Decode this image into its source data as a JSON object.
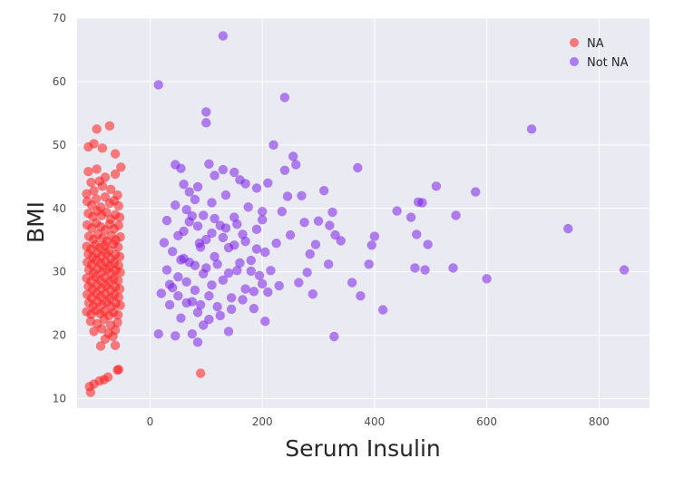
{
  "chart_data": {
    "type": "scatter",
    "xlabel": "Serum Insulin",
    "ylabel": "BMI",
    "xlim": [
      -130,
      890
    ],
    "ylim": [
      8.5,
      70
    ],
    "xticks": [
      0,
      200,
      400,
      600,
      800
    ],
    "yticks": [
      10,
      20,
      30,
      40,
      50,
      60,
      70
    ],
    "grid": true,
    "legend_placement": "top-right",
    "series": [
      {
        "name": "NA",
        "color": "#ff1a1a",
        "values": [
          [
            -110,
            49.7
          ],
          [
            -100,
            50.2
          ],
          [
            -95,
            52.5
          ],
          [
            -85,
            49.5
          ],
          [
            -72,
            53.0
          ],
          [
            -62,
            48.6
          ],
          [
            -110,
            45.8
          ],
          [
            -95,
            46.2
          ],
          [
            -80,
            44.9
          ],
          [
            -62,
            45.4
          ],
          [
            -52,
            46.5
          ],
          [
            -105,
            44.1
          ],
          [
            -113,
            42.3
          ],
          [
            -100,
            42.8
          ],
          [
            -85,
            43.5
          ],
          [
            -70,
            43.0
          ],
          [
            -58,
            42.1
          ],
          [
            -90,
            44.3
          ],
          [
            -112,
            41.1
          ],
          [
            -104,
            40.5
          ],
          [
            -96,
            41.5
          ],
          [
            -88,
            40.2
          ],
          [
            -80,
            41.8
          ],
          [
            -72,
            40.8
          ],
          [
            -64,
            41.2
          ],
          [
            -56,
            40.4
          ],
          [
            -110,
            39.2
          ],
          [
            -102,
            38.7
          ],
          [
            -94,
            39.6
          ],
          [
            -86,
            38.9
          ],
          [
            -78,
            39.4
          ],
          [
            -70,
            38.3
          ],
          [
            -62,
            39.0
          ],
          [
            -54,
            38.6
          ],
          [
            -112,
            37.4
          ],
          [
            -104,
            36.9
          ],
          [
            -96,
            37.7
          ],
          [
            -88,
            37.1
          ],
          [
            -80,
            36.6
          ],
          [
            -72,
            37.5
          ],
          [
            -64,
            36.8
          ],
          [
            -56,
            37.3
          ],
          [
            -109,
            35.6
          ],
          [
            -101,
            35.1
          ],
          [
            -93,
            35.9
          ],
          [
            -85,
            35.3
          ],
          [
            -77,
            34.8
          ],
          [
            -69,
            35.7
          ],
          [
            -61,
            35.0
          ],
          [
            -53,
            35.5
          ],
          [
            -113,
            34.0
          ],
          [
            -105,
            33.6
          ],
          [
            -97,
            34.3
          ],
          [
            -89,
            33.8
          ],
          [
            -81,
            34.1
          ],
          [
            -73,
            33.4
          ],
          [
            -65,
            34.4
          ],
          [
            -57,
            33.9
          ],
          [
            -110,
            32.8
          ],
          [
            -102,
            32.3
          ],
          [
            -94,
            33.0
          ],
          [
            -86,
            32.5
          ],
          [
            -78,
            32.9
          ],
          [
            -70,
            32.1
          ],
          [
            -62,
            32.7
          ],
          [
            -54,
            32.4
          ],
          [
            -112,
            31.5
          ],
          [
            -104,
            31.1
          ],
          [
            -96,
            31.8
          ],
          [
            -88,
            31.3
          ],
          [
            -80,
            31.6
          ],
          [
            -72,
            30.9
          ],
          [
            -64,
            31.4
          ],
          [
            -56,
            31.0
          ],
          [
            -109,
            30.3
          ],
          [
            -101,
            29.8
          ],
          [
            -93,
            30.5
          ],
          [
            -85,
            30.0
          ],
          [
            -77,
            30.4
          ],
          [
            -69,
            29.7
          ],
          [
            -61,
            30.2
          ],
          [
            -53,
            29.9
          ],
          [
            -113,
            29.0
          ],
          [
            -105,
            28.5
          ],
          [
            -97,
            29.2
          ],
          [
            -89,
            28.7
          ],
          [
            -81,
            29.1
          ],
          [
            -73,
            28.4
          ],
          [
            -65,
            28.9
          ],
          [
            -57,
            28.6
          ],
          [
            -110,
            27.7
          ],
          [
            -102,
            27.2
          ],
          [
            -94,
            27.9
          ],
          [
            -86,
            27.4
          ],
          [
            -78,
            27.8
          ],
          [
            -70,
            27.1
          ],
          [
            -62,
            27.6
          ],
          [
            -54,
            27.3
          ],
          [
            -112,
            26.4
          ],
          [
            -104,
            25.9
          ],
          [
            -96,
            26.6
          ],
          [
            -88,
            26.1
          ],
          [
            -80,
            26.5
          ],
          [
            -72,
            25.8
          ],
          [
            -64,
            26.3
          ],
          [
            -56,
            26.0
          ],
          [
            -109,
            25.1
          ],
          [
            -101,
            24.6
          ],
          [
            -93,
            25.3
          ],
          [
            -85,
            24.8
          ],
          [
            -77,
            25.2
          ],
          [
            -69,
            24.5
          ],
          [
            -61,
            25.0
          ],
          [
            -53,
            24.7
          ],
          [
            -113,
            23.7
          ],
          [
            -105,
            23.3
          ],
          [
            -97,
            23.9
          ],
          [
            -89,
            23.4
          ],
          [
            -81,
            23.8
          ],
          [
            -73,
            23.1
          ],
          [
            -65,
            23.6
          ],
          [
            -57,
            23.2
          ],
          [
            -106,
            22.2
          ],
          [
            -94,
            21.8
          ],
          [
            -82,
            22.5
          ],
          [
            -70,
            21.6
          ],
          [
            -58,
            22.0
          ],
          [
            -100,
            20.6
          ],
          [
            -86,
            21.0
          ],
          [
            -74,
            20.3
          ],
          [
            -62,
            20.8
          ],
          [
            -80,
            19.4
          ],
          [
            -66,
            19.8
          ],
          [
            -88,
            18.3
          ],
          [
            -62,
            18.4
          ],
          [
            -58,
            14.5
          ],
          [
            -56,
            14.6
          ],
          [
            -75,
            13.4
          ],
          [
            -82,
            13.0
          ],
          [
            -90,
            12.8
          ],
          [
            -100,
            12.3
          ],
          [
            -108,
            11.9
          ],
          [
            -106,
            11.0
          ],
          [
            90,
            14.0
          ]
        ]
      },
      {
        "name": "Not NA",
        "color": "#7a1fe6",
        "values": [
          [
            15,
            59.5
          ],
          [
            130,
            67.2
          ],
          [
            100,
            55.2
          ],
          [
            100,
            53.5
          ],
          [
            240,
            57.5
          ],
          [
            680,
            52.5
          ],
          [
            745,
            36.8
          ],
          [
            845,
            30.3
          ],
          [
            580,
            42.6
          ],
          [
            600,
            28.9
          ],
          [
            545,
            38.9
          ],
          [
            540,
            30.6
          ],
          [
            510,
            43.5
          ],
          [
            495,
            34.3
          ],
          [
            490,
            30.3
          ],
          [
            485,
            40.9
          ],
          [
            478,
            41.0
          ],
          [
            475,
            35.9
          ],
          [
            472,
            30.6
          ],
          [
            465,
            38.6
          ],
          [
            440,
            39.6
          ],
          [
            415,
            24.0
          ],
          [
            400,
            35.6
          ],
          [
            395,
            34.2
          ],
          [
            390,
            31.2
          ],
          [
            375,
            26.2
          ],
          [
            370,
            46.4
          ],
          [
            360,
            28.3
          ],
          [
            340,
            34.9
          ],
          [
            330,
            35.8
          ],
          [
            328,
            19.8
          ],
          [
            325,
            39.4
          ],
          [
            320,
            37.3
          ],
          [
            318,
            31.2
          ],
          [
            310,
            42.8
          ],
          [
            300,
            38.0
          ],
          [
            295,
            34.3
          ],
          [
            290,
            26.5
          ],
          [
            285,
            32.8
          ],
          [
            280,
            29.9
          ],
          [
            275,
            37.8
          ],
          [
            270,
            42.0
          ],
          [
            265,
            28.3
          ],
          [
            260,
            46.9
          ],
          [
            255,
            48.2
          ],
          [
            250,
            35.8
          ],
          [
            245,
            41.9
          ],
          [
            240,
            46.0
          ],
          [
            235,
            39.5
          ],
          [
            230,
            27.8
          ],
          [
            225,
            34.5
          ],
          [
            220,
            50.0
          ],
          [
            215,
            30.2
          ],
          [
            210,
            44.0
          ],
          [
            205,
            22.2
          ],
          [
            15,
            20.2
          ],
          [
            20,
            26.6
          ],
          [
            25,
            34.6
          ],
          [
            30,
            30.3
          ],
          [
            35,
            24.8
          ],
          [
            40,
            27.5
          ],
          [
            45,
            19.9
          ],
          [
            50,
            35.7
          ],
          [
            55,
            22.7
          ],
          [
            60,
            32.1
          ],
          [
            65,
            28.4
          ],
          [
            70,
            37.9
          ],
          [
            75,
            25.3
          ],
          [
            80,
            31.0
          ],
          [
            85,
            18.9
          ],
          [
            88,
            34.5
          ],
          [
            45,
            46.9
          ],
          [
            55,
            46.3
          ],
          [
            60,
            43.8
          ],
          [
            70,
            42.6
          ],
          [
            75,
            38.8
          ],
          [
            80,
            41.4
          ],
          [
            85,
            43.4
          ],
          [
            95,
            29.7
          ],
          [
            100,
            35.1
          ],
          [
            105,
            26.2
          ],
          [
            110,
            40.9
          ],
          [
            115,
            32.4
          ],
          [
            120,
            24.5
          ],
          [
            125,
            37.3
          ],
          [
            130,
            28.7
          ],
          [
            135,
            42.1
          ],
          [
            140,
            33.8
          ],
          [
            145,
            25.9
          ],
          [
            150,
            38.6
          ],
          [
            155,
            30.2
          ],
          [
            160,
            44.5
          ],
          [
            165,
            35.9
          ],
          [
            170,
            27.3
          ],
          [
            175,
            40.2
          ],
          [
            180,
            31.8
          ],
          [
            185,
            24.2
          ],
          [
            190,
            36.7
          ],
          [
            195,
            29.4
          ],
          [
            200,
            39.5
          ],
          [
            205,
            33.1
          ],
          [
            210,
            26.8
          ],
          [
            105,
            47.0
          ],
          [
            115,
            45.2
          ],
          [
            130,
            46.1
          ],
          [
            150,
            45.7
          ],
          [
            170,
            43.9
          ],
          [
            190,
            43.2
          ],
          [
            200,
            38.2
          ],
          [
            40,
            33.2
          ],
          [
            50,
            29.2
          ],
          [
            60,
            36.4
          ],
          [
            70,
            31.5
          ],
          [
            80,
            27.1
          ],
          [
            90,
            33.9
          ],
          [
            100,
            30.6
          ],
          [
            110,
            36.1
          ],
          [
            120,
            31.2
          ],
          [
            130,
            35.4
          ],
          [
            140,
            29.8
          ],
          [
            150,
            34.2
          ],
          [
            160,
            31.4
          ],
          [
            170,
            34.8
          ],
          [
            180,
            30.1
          ],
          [
            190,
            33.6
          ],
          [
            30,
            38.1
          ],
          [
            45,
            40.5
          ],
          [
            65,
            39.8
          ],
          [
            85,
            37.2
          ],
          [
            95,
            38.9
          ],
          [
            115,
            38.4
          ],
          [
            135,
            36.9
          ],
          [
            155,
            37.5
          ],
          [
            35,
            28.0
          ],
          [
            50,
            26.2
          ],
          [
            65,
            25.1
          ],
          [
            85,
            23.6
          ],
          [
            105,
            22.5
          ],
          [
            125,
            23.1
          ],
          [
            145,
            24.1
          ],
          [
            165,
            25.6
          ],
          [
            185,
            26.9
          ],
          [
            200,
            28.1
          ],
          [
            75,
            20.2
          ],
          [
            95,
            21.6
          ],
          [
            140,
            20.6
          ],
          [
            110,
            27.9
          ],
          [
            90,
            24.8
          ],
          [
            55,
            31.9
          ]
        ]
      }
    ]
  }
}
